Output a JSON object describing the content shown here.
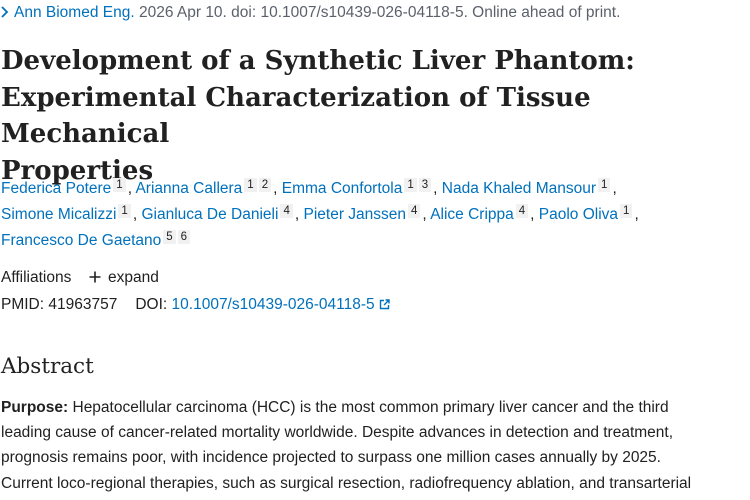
{
  "citation": {
    "journal": "Ann Biomed Eng.",
    "details": "2026 Apr 10. doi: 10.1007/s10439-026-04118-5. Online ahead of print."
  },
  "title_lines": [
    "Development of a Synthetic Liver Phantom:",
    "Experimental Characterization of Tissue Mechanical",
    "Properties"
  ],
  "authors": [
    {
      "name": "Federica Potere",
      "affs": [
        "1"
      ]
    },
    {
      "name": "Arianna Callera",
      "affs": [
        "1",
        "2"
      ]
    },
    {
      "name": "Emma Confortola",
      "affs": [
        "1",
        "3"
      ]
    },
    {
      "name": "Nada Khaled Mansour",
      "affs": [
        "1"
      ]
    },
    {
      "name": "Simone Micalizzi",
      "affs": [
        "1"
      ]
    },
    {
      "name": "Gianluca De Danieli",
      "affs": [
        "4"
      ]
    },
    {
      "name": "Pieter Janssen",
      "affs": [
        "4"
      ]
    },
    {
      "name": "Alice Crippa",
      "affs": [
        "4"
      ]
    },
    {
      "name": "Paolo Oliva",
      "affs": [
        "1"
      ]
    },
    {
      "name": "Francesco De Gaetano",
      "affs": [
        "5",
        "6"
      ]
    }
  ],
  "affiliations": {
    "label": "Affiliations",
    "expand_label": "expand"
  },
  "identifiers": {
    "pmid_label": "PMID:",
    "pmid": "41963757",
    "doi_label": "DOI:",
    "doi": "10.1007/s10439-026-04118-5"
  },
  "abstract": {
    "heading": "Abstract",
    "purpose_label": "Purpose:",
    "lines": [
      " Hepatocellular carcinoma (HCC) is the most common primary liver cancer and the third",
      "leading cause of cancer-related mortality worldwide. Despite advances in detection and treatment,",
      "prognosis remains poor, with incidence projected to surpass one million cases annually by 2025.",
      "Current loco-regional therapies, such as surgical resection, radiofrequency ablation, and transarterial"
    ]
  },
  "colors": {
    "link": "#0071bc",
    "text": "#212121",
    "muted": "#5b616b"
  },
  "icons": {
    "citation_chevron": "chevron-right-icon",
    "expand": "plus-icon",
    "external": "external-link-icon"
  }
}
